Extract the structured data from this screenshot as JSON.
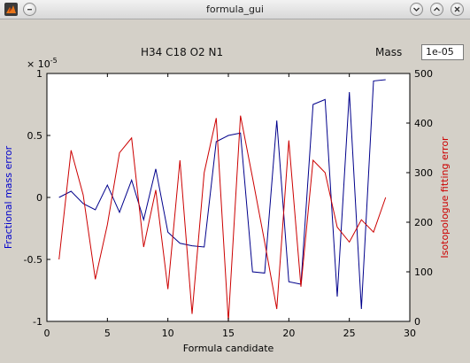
{
  "window": {
    "title": "formula_gui"
  },
  "header": {
    "formula": "H34 C18 O2 N1",
    "mass_label": "Mass",
    "mass_value": "1e-05"
  },
  "chart_data": {
    "type": "line",
    "xlabel": "Formula candidate",
    "ylabel_left": "Fractional mass error",
    "ylabel_right": "Isotopologue fitting error",
    "y_left_exponent": "× 10",
    "y_left_exponent_power": "-5",
    "xlim": [
      0,
      30
    ],
    "ylim_left": [
      -1,
      1
    ],
    "ylim_right": [
      0,
      500
    ],
    "x_ticks": [
      0,
      5,
      10,
      15,
      20,
      25,
      30
    ],
    "x_tick_labels": [
      "0",
      "5",
      "10",
      "15",
      "20",
      "25",
      "30"
    ],
    "y_left_ticks": [
      -1,
      -0.5,
      0,
      0.5,
      1
    ],
    "y_left_tick_labels": [
      "-1",
      "-0.5",
      "0",
      "0.5",
      "1"
    ],
    "y_right_ticks": [
      0,
      100,
      200,
      300,
      400,
      500
    ],
    "y_right_tick_labels": [
      "0",
      "100",
      "200",
      "300",
      "400",
      "500"
    ],
    "x": [
      1,
      2,
      3,
      4,
      5,
      6,
      7,
      8,
      9,
      10,
      11,
      12,
      13,
      14,
      15,
      16,
      17,
      18,
      19,
      20,
      21,
      22,
      23,
      24,
      25,
      26,
      27,
      28
    ],
    "series": [
      {
        "axis": "left",
        "color": "#00008b",
        "values": [
          0.0,
          0.05,
          -0.05,
          -0.1,
          0.1,
          -0.12,
          0.14,
          -0.18,
          0.23,
          -0.28,
          -0.37,
          -0.39,
          -0.4,
          0.45,
          0.5,
          0.52,
          -0.6,
          -0.61,
          0.62,
          -0.68,
          -0.7,
          0.75,
          0.79,
          -0.8,
          0.85,
          -0.9,
          0.94,
          0.95
        ]
      },
      {
        "axis": "right",
        "color": "#cc0000",
        "values": [
          125,
          345,
          255,
          85,
          195,
          340,
          370,
          150,
          265,
          65,
          325,
          15,
          300,
          410,
          0,
          415,
          290,
          160,
          25,
          365,
          70,
          325,
          300,
          190,
          160,
          205,
          180,
          250
        ]
      }
    ],
    "grid": false,
    "legend": "none"
  }
}
